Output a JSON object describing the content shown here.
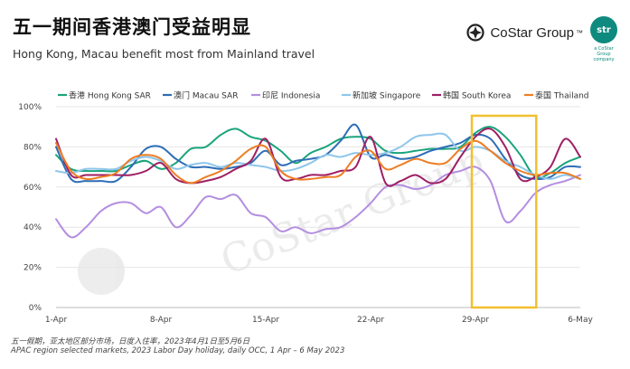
{
  "header": {
    "title": "五一期间香港澳门受益明显",
    "subtitle": "Hong Kong, Macau benefit most from Mainland travel",
    "brand": "CoStar Group",
    "brand_tm": "™",
    "badge": "str",
    "badge_sub": "a CoStar Group company",
    "watermark": "CoStar Group"
  },
  "footnote": {
    "line1": "五一假期，亚太地区部分市场，日度入住率，2023年4月1日至5月6日",
    "line2": "APAC region selected markets, 2023 Labor Day holiday, daily OCC, 1 Apr – 6 May 2023"
  },
  "colors": {
    "hongkong": "#1aa47c",
    "macau": "#2d6db5",
    "indonesia": "#b48ee0",
    "singapore": "#8ec6ea",
    "southkorea": "#9e1f63",
    "thailand": "#ee7d23",
    "highlight": "#f2c02e"
  },
  "chart_data": {
    "type": "line",
    "x": [
      "1-Apr",
      "2-Apr",
      "3-Apr",
      "4-Apr",
      "5-Apr",
      "6-Apr",
      "7-Apr",
      "8-Apr",
      "9-Apr",
      "10-Apr",
      "11-Apr",
      "12-Apr",
      "13-Apr",
      "14-Apr",
      "15-Apr",
      "16-Apr",
      "17-Apr",
      "18-Apr",
      "19-Apr",
      "20-Apr",
      "21-Apr",
      "22-Apr",
      "23-Apr",
      "24-Apr",
      "25-Apr",
      "26-Apr",
      "27-Apr",
      "28-Apr",
      "29-Apr",
      "30-Apr",
      "1-May",
      "2-May",
      "3-May",
      "4-May",
      "5-May",
      "6-May"
    ],
    "xticks": [
      "1-Apr",
      "8-Apr",
      "15-Apr",
      "22-Apr",
      "29-Apr",
      "6-May"
    ],
    "ylim": [
      0,
      100
    ],
    "yticks": [
      "0%",
      "20%",
      "40%",
      "60%",
      "80%",
      "100%"
    ],
    "series": [
      {
        "name": "香港 Hong Kong SAR",
        "key": "hongkong",
        "values": [
          76,
          69,
          68,
          68,
          68,
          71,
          73,
          69,
          72,
          79,
          80,
          86,
          89,
          85,
          83,
          78,
          72,
          77,
          80,
          84,
          85,
          84,
          78,
          77,
          78,
          79,
          79,
          80,
          87,
          90,
          85,
          76,
          65,
          67,
          72,
          75
        ]
      },
      {
        "name": "澳门 Macau SAR",
        "key": "macau",
        "values": [
          80,
          64,
          63,
          63,
          63,
          70,
          79,
          80,
          74,
          70,
          70,
          69,
          70,
          72,
          78,
          71,
          73,
          74,
          76,
          83,
          91,
          75,
          76,
          74,
          75,
          78,
          80,
          82,
          86,
          84,
          74,
          66,
          64,
          65,
          70,
          70
        ]
      },
      {
        "name": "印尼 Indonesia",
        "key": "indonesia",
        "values": [
          44,
          35,
          40,
          48,
          52,
          52,
          47,
          50,
          40,
          46,
          55,
          54,
          56,
          47,
          45,
          38,
          40,
          37,
          39,
          40,
          45,
          52,
          60,
          61,
          59,
          61,
          66,
          68,
          70,
          63,
          43,
          48,
          57,
          61,
          63,
          66
        ]
      },
      {
        "name": "新加坡 Singapore",
        "key": "singapore",
        "values": [
          68,
          67,
          69,
          69,
          69,
          73,
          75,
          73,
          69,
          71,
          72,
          70,
          72,
          71,
          70,
          68,
          69,
          72,
          76,
          75,
          77,
          76,
          77,
          80,
          85,
          86,
          86,
          78,
          80,
          78,
          73,
          70,
          66,
          64,
          66,
          64
        ]
      },
      {
        "name": "韩国 South Korea",
        "key": "southkorea",
        "values": [
          84,
          66,
          66,
          66,
          66,
          66,
          68,
          72,
          64,
          62,
          63,
          65,
          69,
          73,
          84,
          65,
          64,
          66,
          66,
          68,
          70,
          85,
          62,
          63,
          66,
          62,
          64,
          75,
          85,
          89,
          80,
          64,
          65,
          70,
          84,
          75
        ]
      },
      {
        "name": "泰国 Thailand",
        "key": "thailand",
        "values": [
          82,
          68,
          64,
          65,
          67,
          74,
          76,
          74,
          66,
          62,
          65,
          68,
          73,
          79,
          80,
          68,
          64,
          64,
          65,
          66,
          75,
          78,
          69,
          71,
          74,
          72,
          72,
          79,
          83,
          78,
          72,
          68,
          66,
          67,
          67,
          64
        ]
      }
    ],
    "highlight_range": [
      "29-Apr",
      "3-May"
    ],
    "grid": true,
    "legend": "top"
  }
}
